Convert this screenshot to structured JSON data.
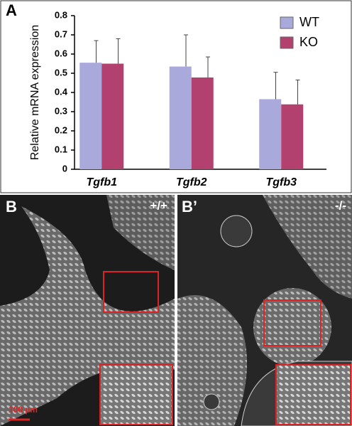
{
  "chart_data": {
    "type": "bar",
    "ylabel": "Relative mRNA expression",
    "categories": [
      "Tgfb1",
      "Tgfb2",
      "Tgfb3"
    ],
    "series": [
      {
        "name": "WT",
        "color": "#a9a9dc",
        "values": [
          0.555,
          0.535,
          0.365
        ],
        "errors": [
          0.115,
          0.165,
          0.14
        ]
      },
      {
        "name": "KO",
        "color": "#b3416f",
        "values": [
          0.55,
          0.478,
          0.338
        ],
        "errors": [
          0.13,
          0.107,
          0.127
        ]
      }
    ],
    "ylim": [
      0,
      0.8
    ],
    "yticks": [
      0,
      0.1,
      0.2,
      0.3,
      0.4,
      0.5,
      0.6,
      0.7,
      0.8
    ],
    "legend": "top-right"
  },
  "panels": {
    "chart_label": "A",
    "left_label": "B",
    "right_label": "B’",
    "left_genotype": "+/+",
    "right_genotype": "-/-",
    "scale_bar": "100 µm"
  }
}
